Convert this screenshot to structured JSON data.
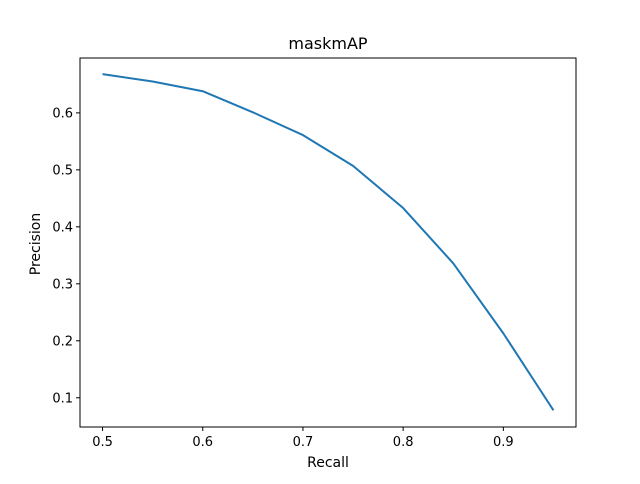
{
  "chart_data": {
    "type": "line",
    "title": "maskmAP",
    "xlabel": "Recall",
    "ylabel": "Precision",
    "xlim": [
      0.4775,
      0.9725
    ],
    "ylim": [
      0.0487,
      0.6963
    ],
    "x_ticks": [
      0.5,
      0.6,
      0.7,
      0.8,
      0.9
    ],
    "x_tick_labels": [
      "0.5",
      "0.6",
      "0.7",
      "0.8",
      "0.9"
    ],
    "y_ticks": [
      0.1,
      0.2,
      0.3,
      0.4,
      0.5,
      0.6
    ],
    "y_tick_labels": [
      "0.1",
      "0.2",
      "0.3",
      "0.4",
      "0.5",
      "0.6"
    ],
    "grid": false,
    "legend": "none",
    "series": [
      {
        "color": "#1f77b4",
        "x": [
          0.5,
          0.55,
          0.6,
          0.65,
          0.7,
          0.75,
          0.8,
          0.85,
          0.9,
          0.95
        ],
        "y": [
          0.668,
          0.655,
          0.638,
          0.601,
          0.561,
          0.507,
          0.433,
          0.336,
          0.213,
          0.078
        ]
      }
    ]
  }
}
